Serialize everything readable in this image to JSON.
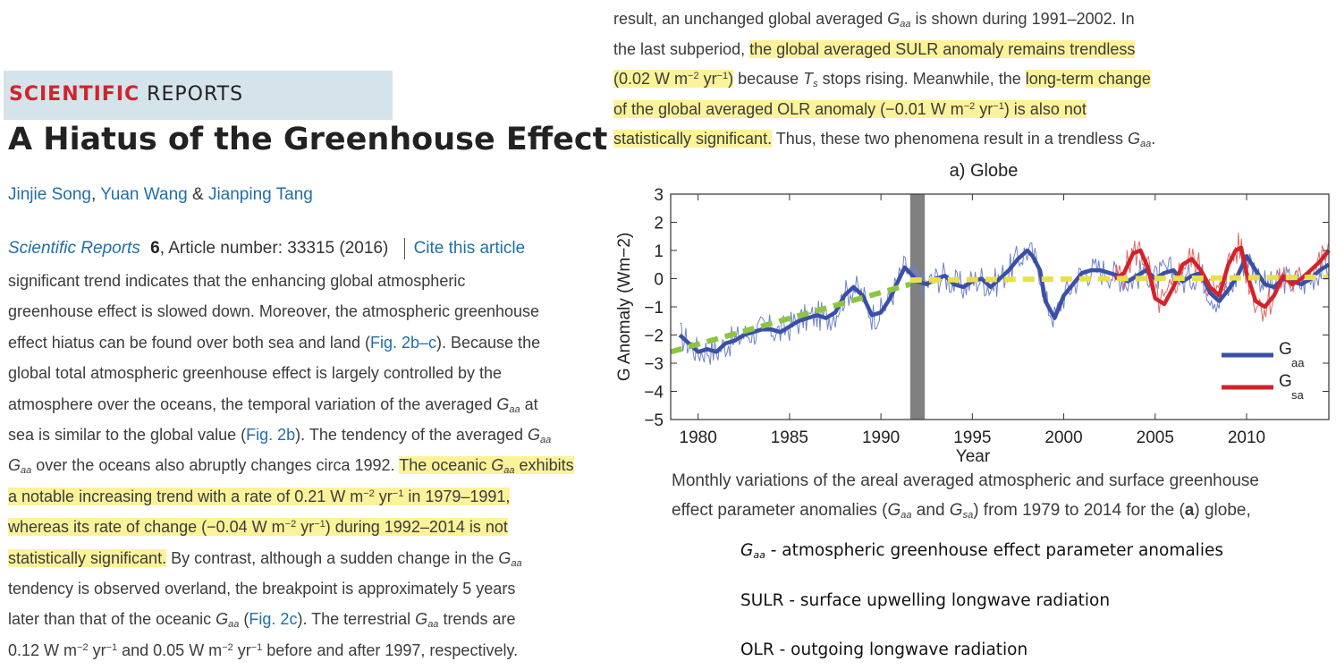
{
  "brand": {
    "part1": "SCIENTIFIC",
    "part2": "REPORTS"
  },
  "article": {
    "title": "A Hiatus of the Greenhouse Effect",
    "authors": {
      "a1": "Jinjie Song",
      "sep1": ", ",
      "a2": "Yuan Wang",
      "sep2": " & ",
      "a3": "Jianping Tang"
    },
    "journal": {
      "name": "Scientific Reports",
      "volume": "6",
      "article_number": ", Article number: 33315 (2016)",
      "cite": "Cite this article"
    }
  },
  "left_text": {
    "l1": "significant trend indicates that the enhancing global atmospheric",
    "l2": "greenhouse effect is slowed down. Moreover, the atmospheric greenhouse",
    "l3a": "effect hiatus can be found over both sea and land (",
    "l3b": "Fig. 2b–c",
    "l3c": "). Because the",
    "l4": "global total atmospheric greenhouse effect is largely controlled by the",
    "l5a": "atmosphere over the oceans, the temporal variation of the averaged ",
    "l5b": " at",
    "l6a": "sea is similar to the global value (",
    "l6b": "Fig. 2b",
    "l6c": "). The tendency of the averaged ",
    "l7a": "over the oceans also abruptly changes circa 1992. ",
    "l7b": "The oceanic ",
    "l7c": " exhibits",
    "l8a": "a notable increasing trend with a rate of 0.21 W m",
    "l8b": " yr",
    "l8c": " in 1979–1991,",
    "l9a": "whereas its rate of change (−0.04 W m",
    "l9b": " yr",
    "l9c": ") during 1992–2014 is not",
    "l10a": "statistically significant.",
    "l10b": " By contrast, although a sudden change in the ",
    "l11": "tendency is observed overland, the breakpoint is approximately 5 years",
    "l12a": "later than that of the oceanic ",
    "l12b": " (",
    "l12c": "Fig. 2c",
    "l12d": "). The terrestrial ",
    "l12e": " trends are",
    "l13a": "0.12 W m",
    "l13b": " yr",
    "l13c": " and 0.05 W m",
    "l13d": " yr",
    "l13e": " before and after 1997, respectively."
  },
  "top_text": {
    "t1a": "result, an unchanged global averaged ",
    "t1b": " is shown during 1991–2002. In",
    "t2a": "the last subperiod, ",
    "t2b": "the global averaged SULR anomaly remains trendless",
    "t3a": "(0.02 W m",
    "t3b": " yr",
    "t3c": ")",
    "t3d": " because ",
    "t3e": " stops rising. Meanwhile, the ",
    "t3f": "long-term change",
    "t4a": "of the global averaged OLR anomaly (−0.01 W m",
    "t4b": " yr",
    "t4c": ") is also not",
    "t5a": "statistically significant.",
    "t5b": " Thus, these two phenomena result in a trendless ",
    "t5c": "."
  },
  "symbols": {
    "G": "G",
    "aa": "aa",
    "sa": "sa",
    "T": "T",
    "s": "s",
    "m2": "−2",
    "m1": "−1"
  },
  "caption": {
    "c1": "Monthly variations of the areal averaged atmospheric and surface greenhouse",
    "c2a": "effect parameter anomalies (",
    "c2b": " and ",
    "c2c": ") from 1979 to 2014 for the (",
    "c2d": "a",
    "c2e": ") globe,"
  },
  "notes": {
    "n1": " - atmospheric greenhouse effect parameter anomalies",
    "n2": "SULR - surface upwelling longwave radiation",
    "n3": "OLR - outgoing longwave radiation"
  },
  "chart_data": {
    "type": "line",
    "title": "a) Globe",
    "xlabel": "Year",
    "ylabel": "G Anomaly (Wm−2)",
    "xlim": [
      1978.5,
      2014.5
    ],
    "ylim": [
      -5,
      3
    ],
    "x_ticks": [
      1980,
      1985,
      1990,
      1995,
      2000,
      2005,
      2010
    ],
    "y_ticks": [
      3,
      2,
      1,
      0,
      -1,
      -2,
      -3,
      -4,
      -5
    ],
    "shaded_period": [
      1991.6,
      1992.4
    ],
    "legend": {
      "position": "right",
      "entries": [
        {
          "label": "G",
          "sub": "aa",
          "color": "#3a4fa6"
        },
        {
          "label": "G",
          "sub": "sa",
          "color": "#d2232a"
        }
      ]
    },
    "series": [
      {
        "name": "Gaa",
        "role": "smoothed",
        "color": "#3a4fa6",
        "x": [
          1979,
          1979.5,
          1980,
          1980.5,
          1981,
          1981.5,
          1982,
          1982.5,
          1983,
          1983.5,
          1984,
          1984.5,
          1985,
          1985.5,
          1986,
          1986.5,
          1987,
          1987.5,
          1988,
          1988.5,
          1989,
          1989.5,
          1990,
          1990.5,
          1991,
          1991.3,
          1991.6,
          1992,
          1992.5,
          1993,
          1993.5,
          1994,
          1994.5,
          1995,
          1995.5,
          1996,
          1996.5,
          1997,
          1997.5,
          1998,
          1998.3,
          1998.7,
          1999,
          1999.5,
          2000,
          2000.5,
          2001,
          2001.5,
          2002,
          2002.5,
          2003,
          2003.5,
          2004,
          2004.5,
          2005,
          2005.5,
          2006,
          2006.5,
          2007,
          2007.5,
          2008,
          2008.5,
          2009,
          2009.5,
          2010,
          2010.5,
          2011,
          2011.5,
          2012,
          2012.5,
          2013,
          2013.5,
          2014,
          2014.5
        ],
        "y": [
          -2.0,
          -2.3,
          -2.6,
          -2.5,
          -2.6,
          -2.3,
          -2.2,
          -2.0,
          -1.9,
          -1.8,
          -1.8,
          -1.9,
          -1.7,
          -1.5,
          -1.4,
          -1.3,
          -1.4,
          -1.2,
          -0.6,
          -0.3,
          -0.6,
          -1.3,
          -1.2,
          -0.7,
          0.0,
          0.4,
          0.2,
          -0.1,
          -0.2,
          0.0,
          0.1,
          -0.2,
          -0.3,
          -0.1,
          0.0,
          -0.3,
          0.0,
          0.3,
          0.7,
          1.0,
          0.8,
          0.3,
          -0.8,
          -1.4,
          -0.6,
          -0.2,
          0.2,
          0.3,
          0.3,
          0.2,
          0.1,
          -0.1,
          0.1,
          0.3,
          0.0,
          0.2,
          0.3,
          -0.1,
          0.1,
          0.2,
          -0.5,
          -0.8,
          -0.4,
          0.1,
          0.8,
          0.3,
          -0.2,
          -0.3,
          0.0,
          -0.1,
          -0.2,
          0.0,
          0.3,
          0.5
        ]
      },
      {
        "name": "Gaa",
        "role": "monthly",
        "color": "#6f81c9",
        "x": [
          1979,
          2014.5
        ],
        "y": [
          -2.0,
          0.6
        ]
      },
      {
        "name": "Gsa",
        "role": "smoothed",
        "color": "#d2232a",
        "x": [
          2002.8,
          2003.3,
          2003.8,
          2004.2,
          2004.6,
          2005,
          2005.5,
          2006,
          2006.5,
          2007,
          2007.5,
          2008,
          2008.5,
          2009,
          2009.4,
          2009.7,
          2010,
          2010.5,
          2011,
          2011.5,
          2012,
          2012.5,
          2013,
          2013.5,
          2014,
          2014.5
        ],
        "y": [
          0.0,
          0.2,
          0.9,
          1.0,
          0.4,
          -0.7,
          -0.9,
          -0.3,
          0.5,
          0.7,
          0.3,
          -0.3,
          -0.6,
          0.5,
          1.0,
          1.1,
          0.2,
          -0.8,
          -1.0,
          -0.6,
          0.1,
          -0.2,
          0.0,
          0.3,
          0.6,
          1.0
        ]
      },
      {
        "name": "trend 1979–1991",
        "color": "#8cc63f",
        "x": [
          1978.5,
          1991.6
        ],
        "y": [
          -2.6,
          -0.2
        ]
      },
      {
        "name": "trend 1992–2014",
        "color": "#e8e04a",
        "x": [
          1991.6,
          2014.5
        ],
        "y": [
          -0.05,
          0.05
        ]
      }
    ]
  }
}
